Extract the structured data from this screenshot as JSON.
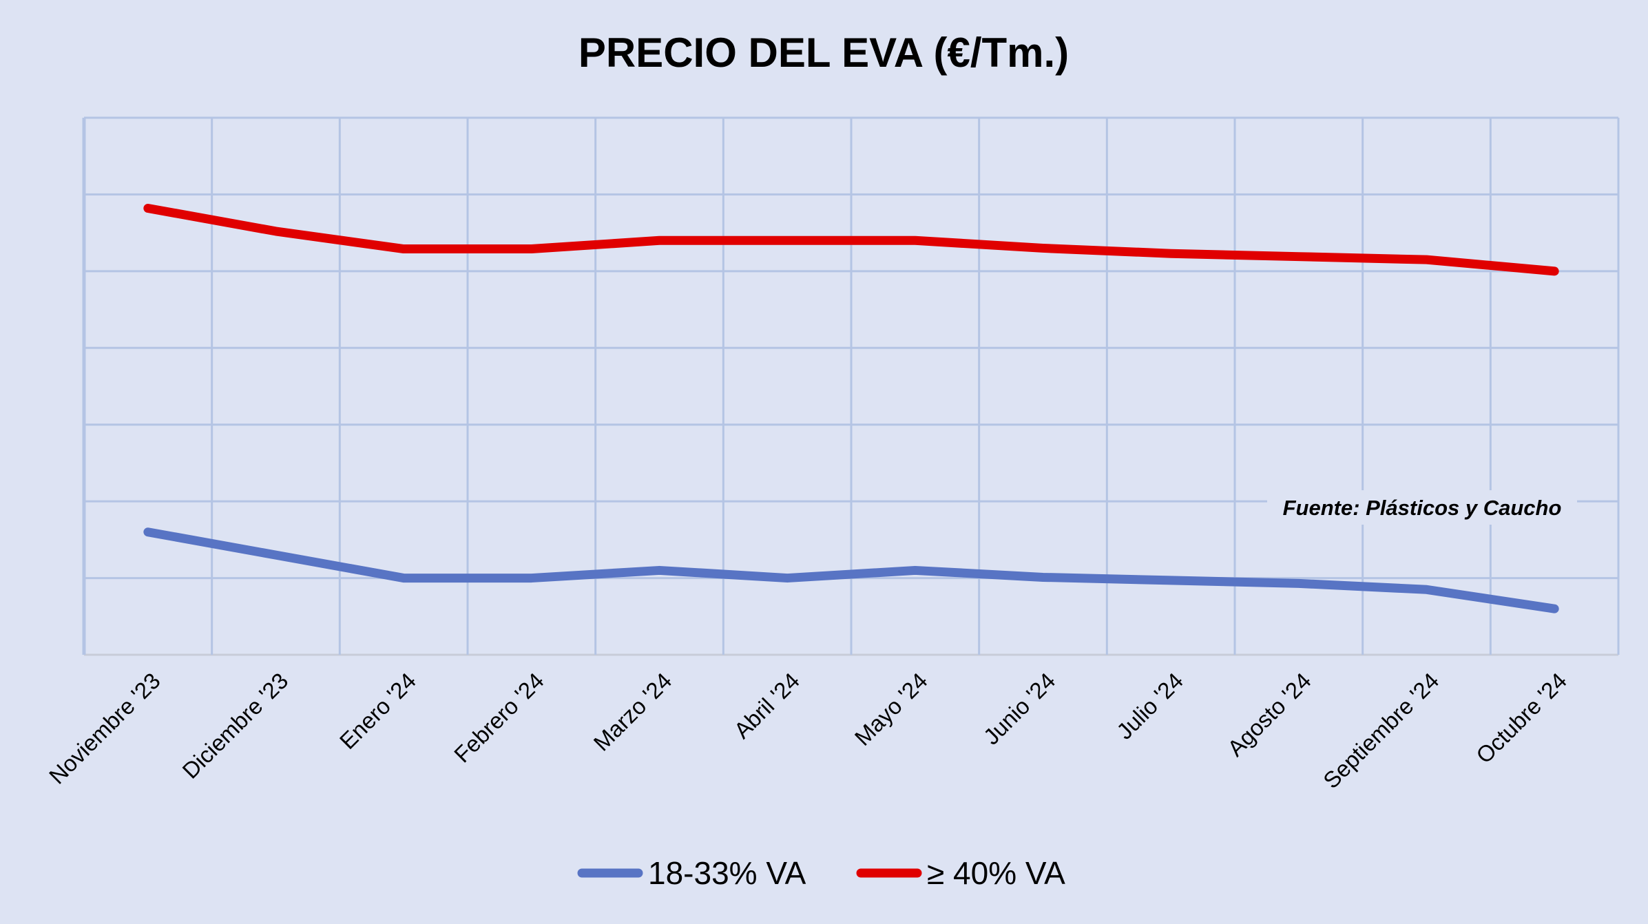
{
  "chart_data": {
    "type": "line",
    "title": "PRECIO DEL EVA (€/Tm.)",
    "xlabel": "",
    "ylabel": "",
    "y_axis_labels_shown": false,
    "ylim": [
      0,
      7
    ],
    "grid": true,
    "legend_position": "bottom",
    "annotation": "Fuente: Plásticos y Caucho",
    "categories": [
      "Noviembre '23",
      "Diciembre '23",
      "Enero '24",
      "Febrero '24",
      "Marzo '24",
      "Abril '24",
      "Mayo '24",
      "Junio '24",
      "Julio '24",
      "Agosto '24",
      "Septiembre '24",
      "Octubre '24"
    ],
    "series": [
      {
        "name": "18-33% VA",
        "color": "#5874c4",
        "values": [
          1.6,
          1.3,
          1.0,
          1.0,
          1.1,
          1.0,
          1.1,
          1.01,
          0.97,
          0.93,
          0.85,
          0.6
        ]
      },
      {
        "name": "≥ 40% VA",
        "color": "#e00000",
        "values": [
          5.82,
          5.52,
          5.29,
          5.29,
          5.4,
          5.4,
          5.4,
          5.3,
          5.23,
          5.19,
          5.15,
          5.0
        ]
      }
    ]
  }
}
